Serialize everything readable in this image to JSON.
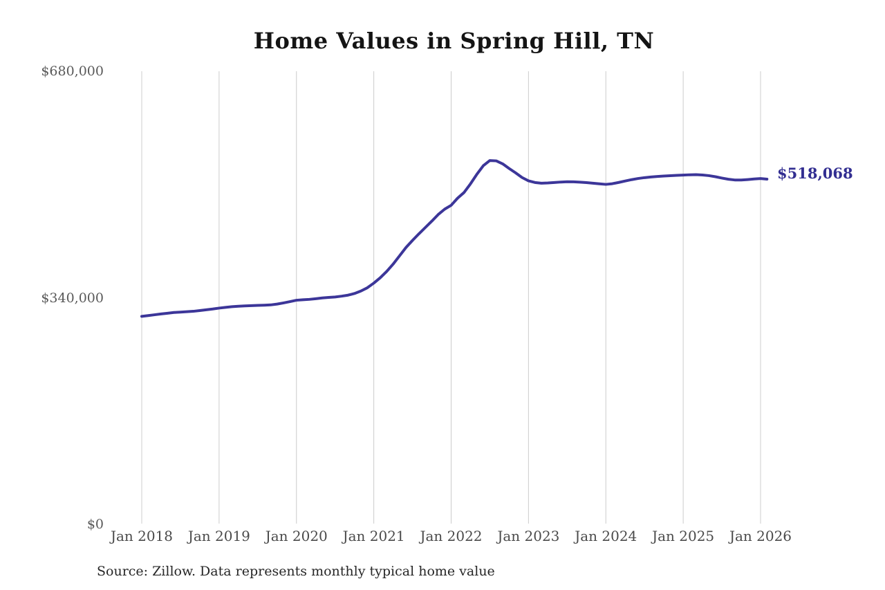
{
  "source": "Source: Zillow. Data represents monthly typical home value",
  "colors": {
    "line": "#3c3699",
    "end_label": "#322e91",
    "grid": "#cccccc",
    "y_axis_text": "#595959",
    "x_axis_text": "#4a4a4a",
    "title_text": "#141414",
    "source_text": "#262626",
    "background": "#ffffff"
  },
  "chart_data": {
    "type": "line",
    "title": "Home Values in Spring Hill, TN",
    "xlabel": "",
    "ylabel": "",
    "ylim": [
      0,
      680000
    ],
    "grid": "vertical-only",
    "legend": "none",
    "end_label": "$518,068",
    "end_value": 518068,
    "x_ticks": [
      "Jan 2018",
      "Jan 2019",
      "Jan 2020",
      "Jan 2021",
      "Jan 2022",
      "Jan 2023",
      "Jan 2024",
      "Jan 2025",
      "Jan 2026"
    ],
    "y_ticks": [
      {
        "label": "$0",
        "value": 0
      },
      {
        "label": "$340,000",
        "value": 340000
      },
      {
        "label": "$680,000",
        "value": 680000
      }
    ],
    "series": [
      {
        "name": "Monthly typical home value",
        "start_month": "Jan 2018",
        "frequency": "monthly",
        "values": [
          312100,
          313300,
          314500,
          315700,
          316800,
          317900,
          318500,
          319100,
          319700,
          320800,
          322000,
          323100,
          324500,
          325600,
          326600,
          327300,
          327800,
          328200,
          328600,
          328900,
          329300,
          330500,
          332300,
          334200,
          336300,
          337000,
          337600,
          338600,
          339700,
          340500,
          341200,
          342400,
          343900,
          346400,
          350100,
          355000,
          362000,
          370000,
          379500,
          390500,
          403000,
          415500,
          426000,
          436000,
          445500,
          455000,
          465000,
          473000,
          478800,
          489500,
          498000,
          511000,
          525500,
          538400,
          546000,
          545500,
          541000,
          534000,
          527500,
          520500,
          515500,
          513000,
          511900,
          512300,
          513000,
          513700,
          514100,
          514000,
          513500,
          512800,
          512000,
          511000,
          510200,
          511200,
          513100,
          515300,
          517300,
          519000,
          520300,
          521300,
          522100,
          522700,
          523200,
          523700,
          524100,
          524600,
          524800,
          524300,
          523300,
          521700,
          519700,
          517900,
          516800,
          516700,
          517400,
          518300,
          518900,
          518068
        ]
      }
    ]
  }
}
